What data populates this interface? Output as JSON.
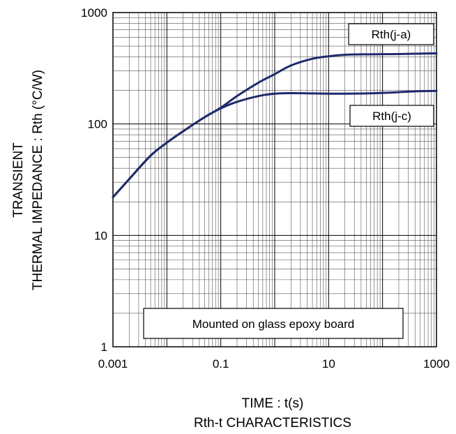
{
  "chart_data": {
    "type": "line",
    "title": "Rth-t CHARACTERISTICS",
    "xlabel": "TIME : t(s)",
    "ylabel_lines": [
      "TRANSIENT",
      "THERMAL IMPEDANCE : Rth (°C/W)"
    ],
    "x_scale": "log",
    "y_scale": "log",
    "xlim": [
      0.001,
      1000
    ],
    "ylim": [
      1,
      1000
    ],
    "x_ticks": [
      {
        "value": 0.001,
        "label": "0.001"
      },
      {
        "value": 0.1,
        "label": "0.1"
      },
      {
        "value": 10,
        "label": "10"
      },
      {
        "value": 1000,
        "label": "1000"
      }
    ],
    "y_ticks": [
      {
        "value": 1,
        "label": "1"
      },
      {
        "value": 10,
        "label": "10"
      },
      {
        "value": 100,
        "label": "100"
      },
      {
        "value": 1000,
        "label": "1000"
      }
    ],
    "grid": true,
    "series": [
      {
        "name": "Rth(j-a)",
        "color": "#1f2a6b",
        "points": [
          [
            0.001,
            22
          ],
          [
            0.002,
            32
          ],
          [
            0.005,
            52
          ],
          [
            0.01,
            68
          ],
          [
            0.02,
            86
          ],
          [
            0.05,
            115
          ],
          [
            0.1,
            140
          ],
          [
            0.2,
            178
          ],
          [
            0.5,
            235
          ],
          [
            1,
            280
          ],
          [
            2,
            335
          ],
          [
            5,
            385
          ],
          [
            10,
            405
          ],
          [
            20,
            418
          ],
          [
            50,
            422
          ],
          [
            100,
            423
          ],
          [
            200,
            424
          ],
          [
            500,
            428
          ],
          [
            1000,
            430
          ]
        ]
      },
      {
        "name": "Rth(j-c)",
        "color": "#1f2a6b",
        "points": [
          [
            0.001,
            22
          ],
          [
            0.002,
            32
          ],
          [
            0.005,
            52
          ],
          [
            0.01,
            68
          ],
          [
            0.02,
            86
          ],
          [
            0.05,
            115
          ],
          [
            0.1,
            138
          ],
          [
            0.2,
            158
          ],
          [
            0.5,
            178
          ],
          [
            1,
            187
          ],
          [
            2,
            189
          ],
          [
            5,
            188
          ],
          [
            10,
            187
          ],
          [
            20,
            187
          ],
          [
            50,
            188
          ],
          [
            100,
            190
          ],
          [
            200,
            193
          ],
          [
            500,
            197
          ],
          [
            1000,
            198
          ]
        ]
      }
    ],
    "series_labels": [
      "Rth(j-a)",
      "Rth(j-c)"
    ],
    "annotation": "Mounted on glass epoxy board"
  }
}
